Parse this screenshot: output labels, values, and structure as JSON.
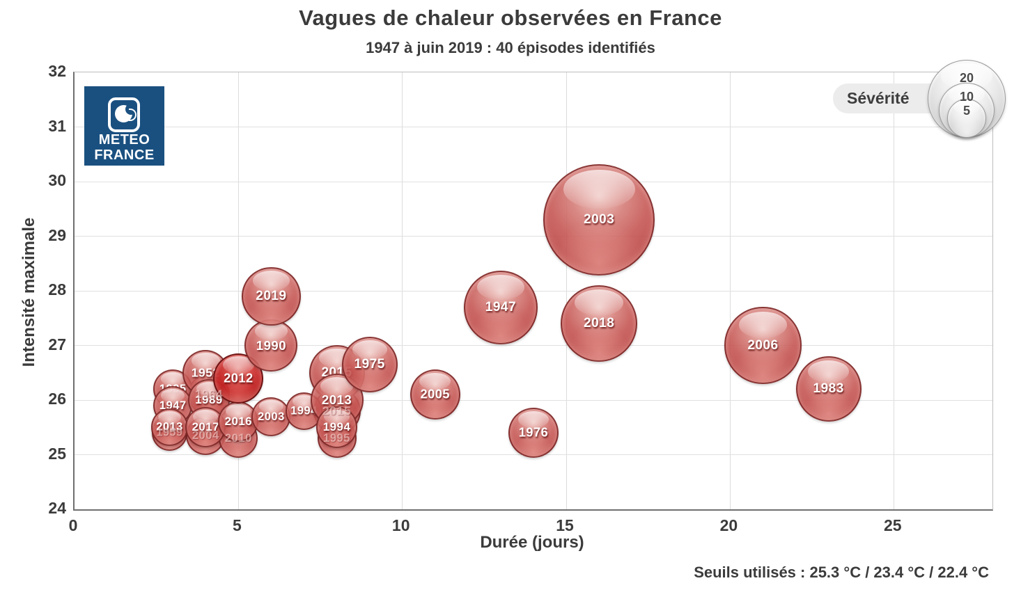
{
  "title": "Vagues de chaleur observées en France",
  "subtitle": "1947 à juin 2019 : 40 épisodes identifiés",
  "footnote": "Seuils utilisés : 25.3 °C / 23.4 °C / 22.4 °C",
  "logo": {
    "line1": "METEO",
    "line2": "FRANCE",
    "bg_color": "#1a5080"
  },
  "legend": {
    "label": "Sévérité",
    "sizes": [
      20,
      10,
      5
    ],
    "position": "top-right"
  },
  "colors": {
    "bubble_red": "#c04b48",
    "bubble_dark_red": "#b81c1c",
    "bubble_rim": "#702222",
    "text": "#3b3b3b",
    "grid": "#dcdcdc"
  },
  "chart_data": {
    "type": "scatter",
    "title": "Vagues de chaleur observées en France",
    "subtitle": "1947 à juin 2019 : 40 épisodes identifiés",
    "xlabel": "Durée (jours)",
    "ylabel": "Intensité maximale",
    "xlim": [
      0,
      28
    ],
    "ylim": [
      24,
      32
    ],
    "xticks": [
      0,
      5,
      10,
      15,
      20,
      25
    ],
    "yticks": [
      24,
      25,
      26,
      27,
      28,
      29,
      30,
      31,
      32
    ],
    "grid": true,
    "size_meaning": "Sévérité",
    "size_legend_values": [
      20,
      10,
      5
    ],
    "points": [
      {
        "label": "1964",
        "x": 4.1,
        "y": 26.1,
        "severity": 5.7,
        "ghost": true
      },
      {
        "label": "1959",
        "x": 2.9,
        "y": 25.4,
        "severity": 4.3,
        "ghost": true
      },
      {
        "label": "2004",
        "x": 4.0,
        "y": 25.35,
        "severity": 5.0,
        "ghost": true
      },
      {
        "label": "2010",
        "x": 5.0,
        "y": 25.3,
        "severity": 5.0,
        "ghost": true
      },
      {
        "label": "2015",
        "x": 8.0,
        "y": 25.8,
        "severity": 7.4,
        "ghost": true
      },
      {
        "label": "1995",
        "x": 8.0,
        "y": 25.3,
        "severity": 5.0,
        "ghost": true
      },
      {
        "label": "1995",
        "x": 3.0,
        "y": 26.2,
        "severity": 5.0
      },
      {
        "label": "1947",
        "x": 3.0,
        "y": 25.9,
        "severity": 5.0
      },
      {
        "label": "2013",
        "x": 2.9,
        "y": 25.5,
        "severity": 4.6
      },
      {
        "label": "1952",
        "x": 4.0,
        "y": 26.5,
        "severity": 6.9
      },
      {
        "label": "1989",
        "x": 4.1,
        "y": 26.0,
        "severity": 5.7
      },
      {
        "label": "2017",
        "x": 4.0,
        "y": 25.5,
        "severity": 5.4
      },
      {
        "label": "2016",
        "x": 5.0,
        "y": 25.6,
        "severity": 5.4
      },
      {
        "label": "2003",
        "x": 6.0,
        "y": 25.7,
        "severity": 5.0
      },
      {
        "label": "1994",
        "x": 7.0,
        "y": 25.8,
        "severity": 4.6
      },
      {
        "label": "2012",
        "x": 5.0,
        "y": 26.4,
        "severity": 8.3,
        "dark": true
      },
      {
        "label": "1990",
        "x": 6.0,
        "y": 27.0,
        "severity": 9.2
      },
      {
        "label": "2019",
        "x": 6.0,
        "y": 27.9,
        "severity": 11.3
      },
      {
        "label": "2015",
        "x": 8.0,
        "y": 26.5,
        "severity": 10.2
      },
      {
        "label": "2013",
        "x": 8.0,
        "y": 26.0,
        "severity": 9.2
      },
      {
        "label": "1994",
        "x": 8.0,
        "y": 25.5,
        "severity": 5.7
      },
      {
        "label": "1975",
        "x": 9.0,
        "y": 26.65,
        "severity": 10.2
      },
      {
        "label": "2005",
        "x": 11.0,
        "y": 26.1,
        "severity": 8.3
      },
      {
        "label": "1976",
        "x": 14.0,
        "y": 25.4,
        "severity": 8.3
      },
      {
        "label": "1947",
        "x": 13.0,
        "y": 27.7,
        "severity": 17.9
      },
      {
        "label": "2018",
        "x": 16.0,
        "y": 27.4,
        "severity": 19.3
      },
      {
        "label": "2003",
        "x": 16.0,
        "y": 29.3,
        "severity": 40.8
      },
      {
        "label": "2006",
        "x": 21.0,
        "y": 27.0,
        "severity": 19.3
      },
      {
        "label": "1983",
        "x": 23.0,
        "y": 26.2,
        "severity": 14.1
      }
    ]
  }
}
